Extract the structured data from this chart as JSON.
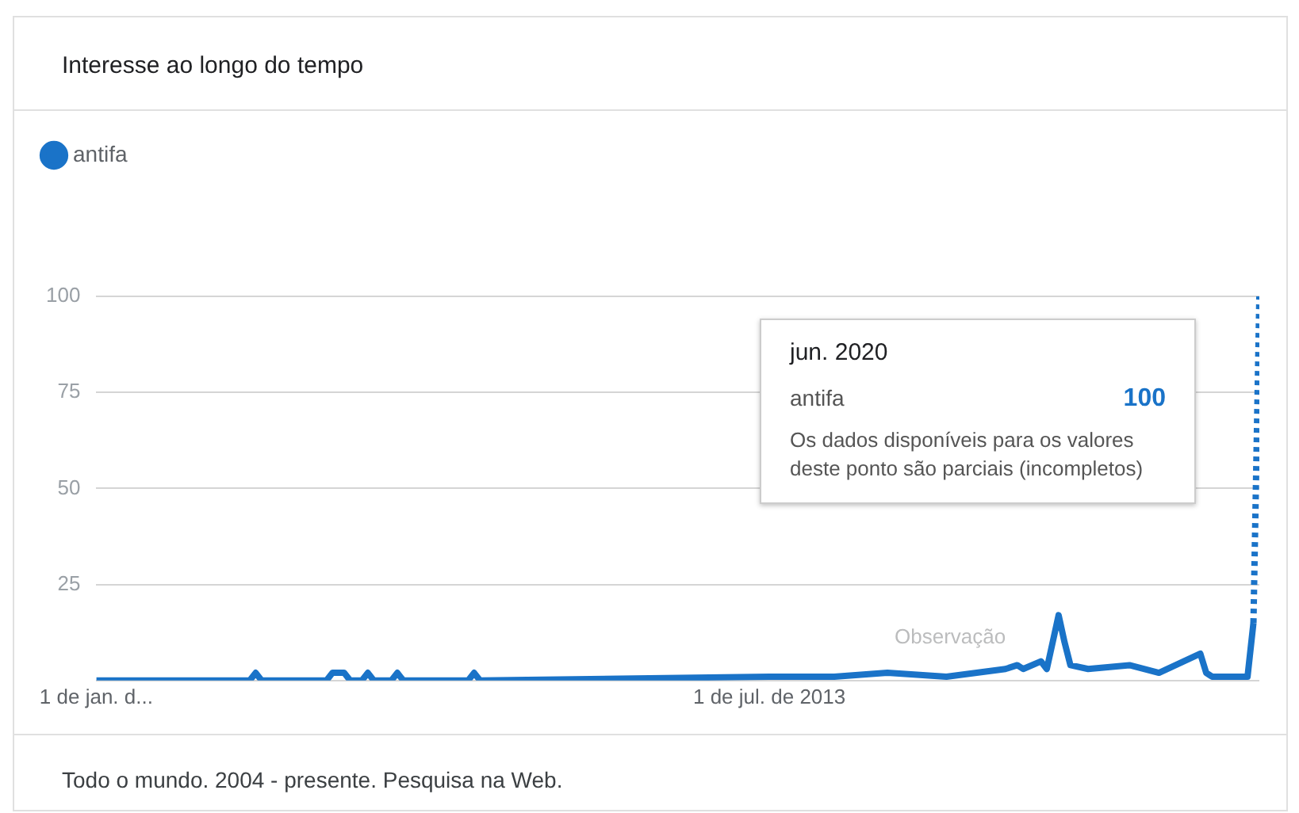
{
  "chart_data": {
    "type": "line",
    "title": "Interesse ao longo do tempo",
    "series": [
      {
        "name": "antifa",
        "color": "#1a73c8",
        "line_style": "solid",
        "x": [
          "2004-01",
          "2006-03",
          "2006-04",
          "2006-05",
          "2007-04",
          "2007-05",
          "2007-07",
          "2007-08",
          "2007-10",
          "2007-11",
          "2007-12",
          "2008-03",
          "2008-04",
          "2008-05",
          "2009-04",
          "2009-05",
          "2009-06",
          "2013-07",
          "2014-06",
          "2015-03",
          "2016-01",
          "2016-11",
          "2017-01",
          "2017-02",
          "2017-05",
          "2017-06",
          "2017-08",
          "2017-09",
          "2017-10",
          "2018-01",
          "2018-08",
          "2019-01",
          "2019-08",
          "2019-09",
          "2019-10",
          "2020-04",
          "2020-05"
        ],
        "values": [
          0,
          0,
          2,
          0,
          0,
          2,
          2,
          0,
          0,
          2,
          0,
          0,
          2,
          0,
          0,
          2,
          0,
          1,
          1,
          2,
          1,
          3,
          4,
          3,
          5,
          3,
          17,
          10,
          4,
          3,
          4,
          2,
          7,
          2,
          1,
          1,
          15
        ]
      },
      {
        "color": "#1a73c8",
        "line_style": "dotted",
        "x": [
          "2020-05",
          "2020-06"
        ],
        "values": [
          15,
          100
        ]
      }
    ],
    "xlim": [
      "2004-01",
      "2020-06"
    ],
    "xticks": [
      {
        "value": "2004-01",
        "label": "1 de jan. d..."
      },
      {
        "value": "2013-07",
        "label": "1 de jul. de 2013"
      }
    ],
    "ylim": [
      0,
      100
    ],
    "yticks": [
      {
        "value": 0,
        "label": null
      },
      25,
      50,
      75,
      100
    ],
    "grid": "y",
    "legend": "top left",
    "marker": "none",
    "annotations": [
      "Todo o mundo. 2004 - presente. Pesquisa na Web.",
      "Observação",
      "jun. 2020",
      "antifa",
      "100",
      "Os dados disponíveis para os valores deste ponto são parciais (incompletos)"
    ]
  }
}
